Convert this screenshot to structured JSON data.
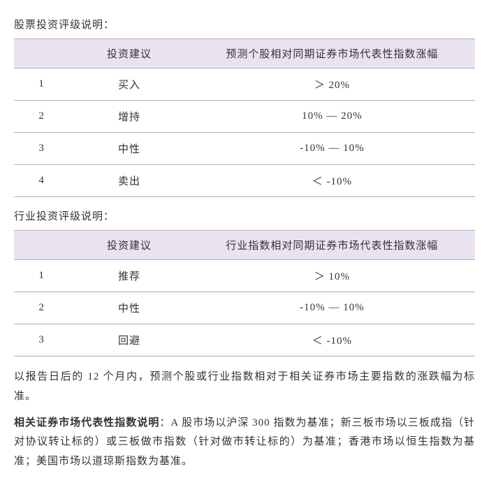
{
  "colors": {
    "header_bg": "#e9e3f0",
    "border": "#b9aad0",
    "text": "#333333",
    "background": "#ffffff"
  },
  "typography": {
    "font_family": "SimSun / Songti serif",
    "base_fontsize_pt": 11,
    "line_height": 1.85
  },
  "stock_rating": {
    "title": "股票投资评级说明：",
    "columns": [
      "",
      "投资建议",
      "预测个股相对同期证券市场代表性指数涨幅"
    ],
    "rows": [
      [
        "1",
        "买入",
        "＞ 20%"
      ],
      [
        "2",
        "增持",
        "10% — 20%"
      ],
      [
        "3",
        "中性",
        "-10% — 10%"
      ],
      [
        "4",
        "卖出",
        "＜ -10%"
      ]
    ],
    "col_widths_pct": [
      12,
      26,
      62
    ]
  },
  "industry_rating": {
    "title": "行业投资评级说明：",
    "columns": [
      "",
      "投资建议",
      "行业指数相对同期证券市场代表性指数涨幅"
    ],
    "rows": [
      [
        "1",
        "推荐",
        "＞ 10%"
      ],
      [
        "2",
        "中性",
        "-10% — 10%"
      ],
      [
        "3",
        "回避",
        "＜ -10%"
      ]
    ],
    "col_widths_pct": [
      12,
      26,
      62
    ]
  },
  "note_para": "以报告日后的 12 个月内，预测个股或行业指数相对于相关证券市场主要指数的涨跌幅为标准。",
  "index_explain": {
    "bold_lead": "相关证券市场代表性指数说明",
    "rest": "：A 股市场以沪深 300 指数为基准；新三板市场以三板成指（针对协议转让标的）或三板做市指数（针对做市转让标的）为基准；香港市场以恒生指数为基准；美国市场以道琼斯指数为基准。"
  }
}
